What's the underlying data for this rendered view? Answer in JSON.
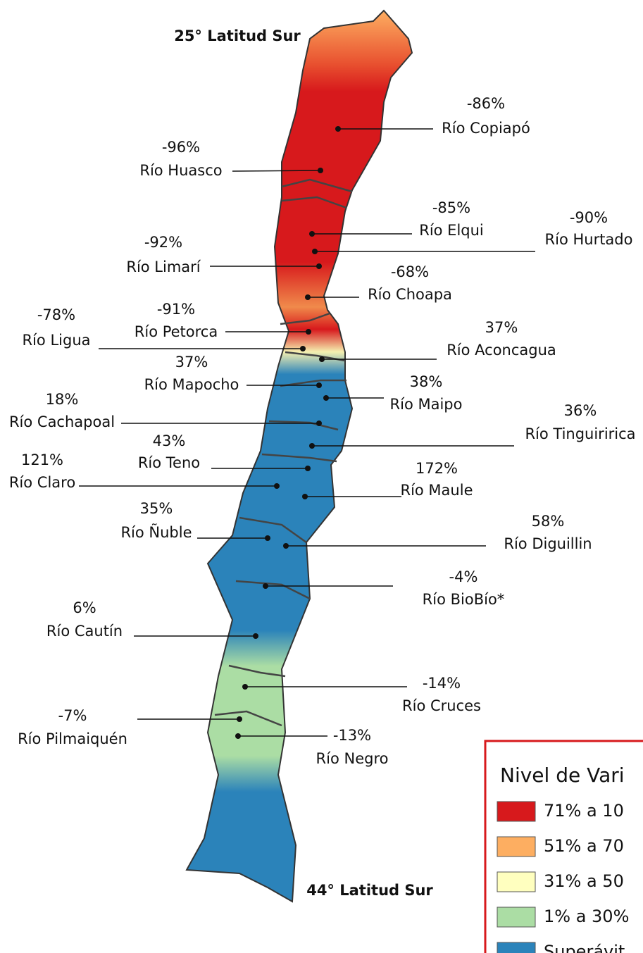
{
  "map": {
    "north_label": "25° Latitud Sur",
    "south_label": "44° Latitud Sur",
    "rivers": [
      {
        "percent": "-86%",
        "name": "Río Copiapó"
      },
      {
        "percent": "-96%",
        "name": "Río Huasco"
      },
      {
        "percent": "-85%",
        "name": "Río Elqui"
      },
      {
        "percent": "-90%",
        "name": "Río Hurtado"
      },
      {
        "percent": "-92%",
        "name": "Río Limarí"
      },
      {
        "percent": "-68%",
        "name": "Río Choapa"
      },
      {
        "percent": "-91%",
        "name": "Río Petorca"
      },
      {
        "percent": "-78%",
        "name": "Río Ligua"
      },
      {
        "percent": "37%",
        "name": "Río Aconcagua"
      },
      {
        "percent": "37%",
        "name": "Río Mapocho"
      },
      {
        "percent": "38%",
        "name": "Río Maipo"
      },
      {
        "percent": "18%",
        "name": "Río Cachapoal"
      },
      {
        "percent": "36%",
        "name": "Río Tinguiririca"
      },
      {
        "percent": "43%",
        "name": "Río Teno"
      },
      {
        "percent": "121%",
        "name": "Río Claro"
      },
      {
        "percent": "172%",
        "name": "Río Maule"
      },
      {
        "percent": "35%",
        "name": "Río Ñuble"
      },
      {
        "percent": "58%",
        "name": "Río Diguillin"
      },
      {
        "percent": "-4%",
        "name": "Río BioBío*"
      },
      {
        "percent": "6%",
        "name": "Río Cautín"
      },
      {
        "percent": "-14%",
        "name": "Río Cruces"
      },
      {
        "percent": "-7%",
        "name": "Río Pilmaiquén"
      },
      {
        "percent": "-13%",
        "name": "Río Negro"
      }
    ],
    "legend": {
      "title": "Nivel de Vari",
      "items": [
        {
          "label": "71% a 10",
          "color": "#d7191c"
        },
        {
          "label": "51% a 70",
          "color": "#fdae61"
        },
        {
          "label": "31% a 50",
          "color": "#ffffbf"
        },
        {
          "label": "1% a 30%",
          "color": "#abdda4"
        },
        {
          "label": "Superávit",
          "color": "#2b83ba"
        }
      ]
    }
  }
}
